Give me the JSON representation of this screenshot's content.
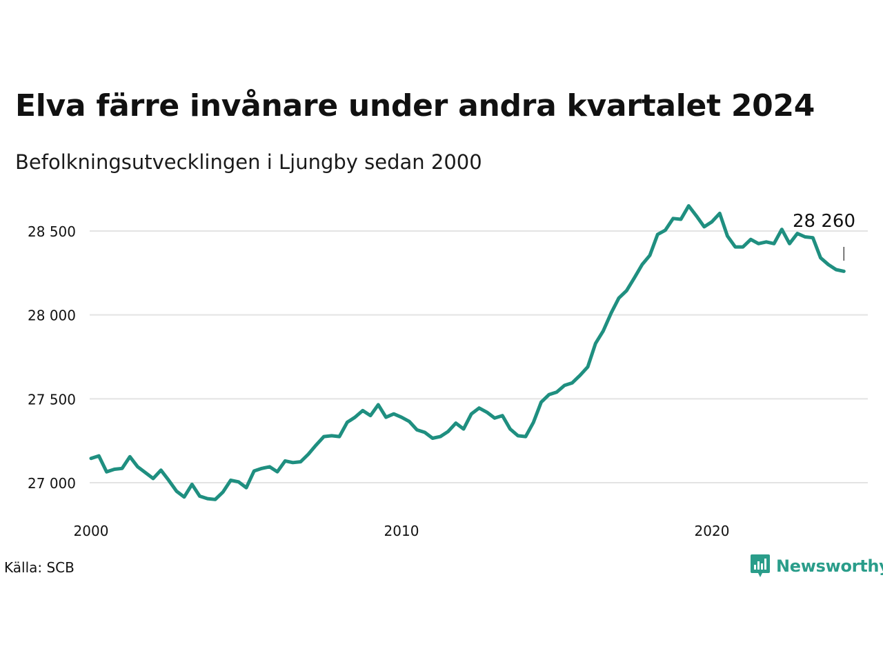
{
  "title": "Elva färre invånare under andra kvartalet 2024",
  "subtitle": "Befolkningsutvecklingen i Ljungby sedan 2000",
  "source": "Källa: SCB",
  "brand": {
    "name": "Newsworthy",
    "color": "#2a9d8a"
  },
  "chart_data": {
    "type": "line",
    "title": "Elva färre invånare under andra kvartalet 2024",
    "subtitle": "Befolkningsutvecklingen i Ljungby sedan 2000",
    "line_color": "#1f8f80",
    "grid": true,
    "legend": "none",
    "xlim": [
      2000,
      2025
    ],
    "ylim": [
      26800,
      28720
    ],
    "x_ticks": [
      2000,
      2010,
      2020
    ],
    "x_tick_labels": [
      "2000",
      "2010",
      "2020"
    ],
    "y_ticks": [
      27000,
      27500,
      28000,
      28500
    ],
    "y_tick_labels": [
      "27 000",
      "27 500",
      "28 000",
      "28 500"
    ],
    "end_label": "28 260",
    "series": [
      {
        "x": [
          2000.0,
          2000.25,
          2000.5,
          2000.75,
          2001.0,
          2001.25,
          2001.5,
          2001.75,
          2002.0,
          2002.25,
          2002.5,
          2002.75,
          2003.0,
          2003.25,
          2003.5,
          2003.75,
          2004.0,
          2004.25,
          2004.5,
          2004.75,
          2005.0,
          2005.25,
          2005.5,
          2005.75,
          2006.0,
          2006.25,
          2006.5,
          2006.75,
          2007.0,
          2007.25,
          2007.5,
          2007.75,
          2008.0,
          2008.25,
          2008.5,
          2008.75,
          2009.0,
          2009.25,
          2009.5,
          2009.75,
          2010.0,
          2010.25,
          2010.5,
          2010.75,
          2011.0,
          2011.25,
          2011.5,
          2011.75,
          2012.0,
          2012.25,
          2012.5,
          2012.75,
          2013.0,
          2013.25,
          2013.5,
          2013.75,
          2014.0,
          2014.25,
          2014.5,
          2014.75,
          2015.0,
          2015.25,
          2015.5,
          2015.75,
          2016.0,
          2016.25,
          2016.5,
          2016.75,
          2017.0,
          2017.25,
          2017.5,
          2017.75,
          2018.0,
          2018.25,
          2018.5,
          2018.75,
          2019.0,
          2019.25,
          2019.5,
          2019.75,
          2020.0,
          2020.25,
          2020.5,
          2020.75,
          2021.0,
          2021.25,
          2021.5,
          2021.75,
          2022.0,
          2022.25,
          2022.5,
          2022.75,
          2023.0,
          2023.25,
          2023.5,
          2023.75,
          2024.0,
          2024.25
        ],
        "values": [
          27145,
          27160,
          27065,
          27080,
          27085,
          27155,
          27095,
          27060,
          27025,
          27075,
          27015,
          26950,
          26915,
          26990,
          26920,
          26905,
          26900,
          26945,
          27015,
          27005,
          26970,
          27070,
          27085,
          27095,
          27065,
          27130,
          27120,
          27125,
          27170,
          27225,
          27275,
          27280,
          27275,
          27360,
          27390,
          27430,
          27400,
          27465,
          27390,
          27410,
          27390,
          27365,
          27315,
          27300,
          27265,
          27275,
          27305,
          27355,
          27320,
          27410,
          27445,
          27420,
          27385,
          27400,
          27320,
          27280,
          27275,
          27360,
          27480,
          27525,
          27540,
          27580,
          27595,
          27640,
          27690,
          27830,
          27905,
          28010,
          28100,
          28145,
          28220,
          28300,
          28355,
          28480,
          28505,
          28575,
          28570,
          28650,
          28590,
          28525,
          28555,
          28605,
          28470,
          28405,
          28405,
          28450,
          28425,
          28435,
          28425,
          28510,
          28425,
          28485,
          28465,
          28460,
          28340,
          28300,
          28270,
          28260
        ]
      }
    ]
  }
}
